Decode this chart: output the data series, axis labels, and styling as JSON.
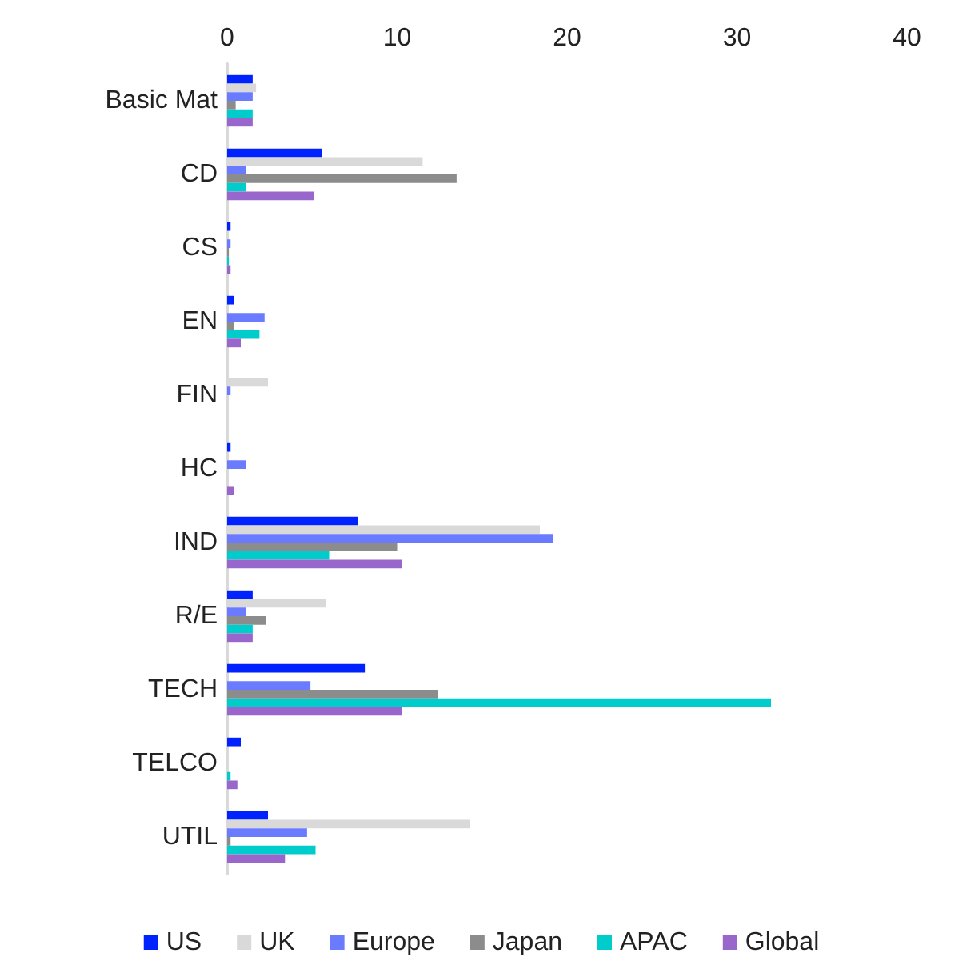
{
  "chart_data": {
    "type": "bar",
    "orientation": "horizontal",
    "categories": [
      "Basic Mat",
      "CD",
      "CS",
      "EN",
      "FIN",
      "HC",
      "IND",
      "R/E",
      "TECH",
      "TELCO",
      "UTIL"
    ],
    "series": [
      {
        "name": "US",
        "color": "#0022ff",
        "values": [
          1.5,
          5.6,
          0.2,
          0.4,
          0,
          0.2,
          7.7,
          1.5,
          8.1,
          0.8,
          2.4
        ]
      },
      {
        "name": "UK",
        "color": "#d9d9d9",
        "values": [
          1.7,
          11.5,
          null,
          0,
          2.4,
          0,
          18.4,
          5.8,
          0,
          0,
          14.3
        ]
      },
      {
        "name": "Europe",
        "color": "#6b7bff",
        "values": [
          1.5,
          1.1,
          0.2,
          2.2,
          0.2,
          1.1,
          19.2,
          1.1,
          4.9,
          0,
          4.7
        ]
      },
      {
        "name": "Japan",
        "color": "#8c8c8c",
        "values": [
          0.5,
          13.5,
          0.1,
          0.4,
          0,
          0,
          10.0,
          2.3,
          12.4,
          0,
          0.2
        ]
      },
      {
        "name": "APAC",
        "color": "#00cccc",
        "values": [
          1.5,
          1.1,
          0.1,
          1.9,
          0,
          0,
          6.0,
          1.5,
          32.0,
          0.2,
          5.2
        ]
      },
      {
        "name": "Global",
        "color": "#9966cc",
        "values": [
          1.5,
          5.1,
          0.2,
          0.8,
          0,
          0.4,
          10.3,
          1.5,
          10.3,
          0.6,
          3.4
        ]
      }
    ],
    "xlim": [
      0,
      40
    ],
    "xticks": [
      0,
      10,
      20,
      30,
      40
    ],
    "grid": false,
    "legend": "bottom"
  }
}
